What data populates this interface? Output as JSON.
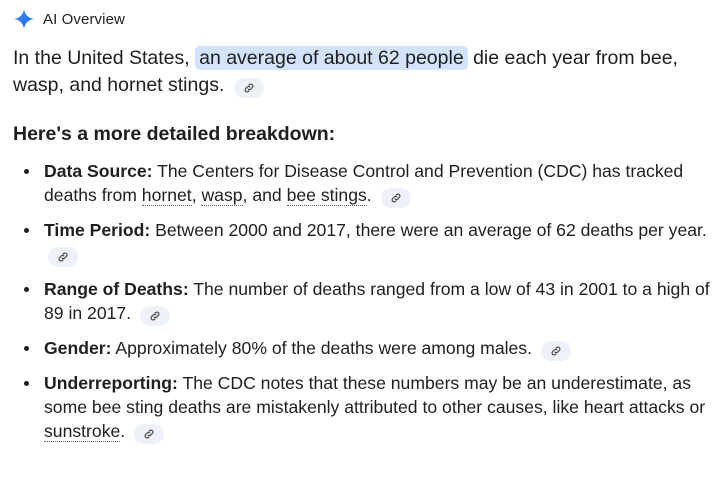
{
  "header": {
    "title": "AI Overview",
    "icon": "sparkle-icon",
    "accent_color": "#4285f4"
  },
  "summary": {
    "before": "In the United States, ",
    "highlight": "an average of about 62 people",
    "after": " die each year from bee, wasp, and hornet stings."
  },
  "section_title": "Here's a more detailed breakdown:",
  "items": [
    {
      "label": "Data Source:",
      "text_a": " The Centers for Disease Control and Prevention (CDC) has tracked deaths from ",
      "link1": "hornet",
      "sep1": ", ",
      "link2": "wasp",
      "sep2": ", and ",
      "link3": "bee stings",
      "end": "."
    },
    {
      "label": "Time Period:",
      "text": " Between 2000 and 2017, there were an average of 62 deaths per year."
    },
    {
      "label": "Range of Deaths:",
      "text": " The number of deaths ranged from a low of 43 in 2001 to a high of 89 in 2017."
    },
    {
      "label": "Gender:",
      "text": " Approximately 80% of the deaths were among males."
    },
    {
      "label": "Underreporting:",
      "text_a": " The CDC notes that these numbers may be an underestimate, as some bee sting deaths are mistakenly attributed to other causes, like heart attacks or ",
      "link1": "sunstroke",
      "end": "."
    }
  ],
  "colors": {
    "highlight_bg": "#d3e3fd",
    "chip_bg": "#eef2f8",
    "text": "#1f1f1f"
  }
}
